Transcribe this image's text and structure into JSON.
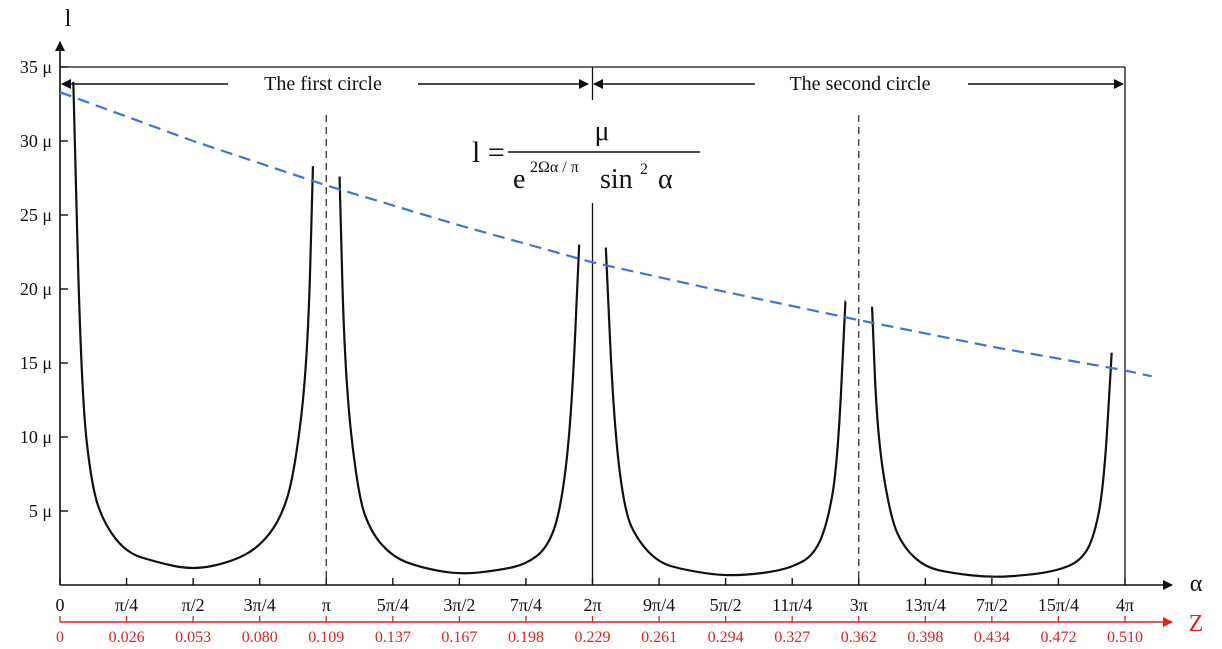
{
  "chart_data": {
    "type": "line",
    "y_axis_label": "l",
    "x_axis_label": "α",
    "z_axis_label": "Z",
    "y_ticks": [
      "5 μ",
      "10 μ",
      "15 μ",
      "20 μ",
      "25 μ",
      "30 μ",
      "35 μ"
    ],
    "y_tick_values": [
      5,
      10,
      15,
      20,
      25,
      30,
      35
    ],
    "ylim": [
      0,
      35
    ],
    "xlim_pi_units": [
      0,
      4
    ],
    "x_ticks": [
      "0",
      "π/4",
      "π/2",
      "3π/4",
      "π",
      "5π/4",
      "3π/2",
      "7π/4",
      "2π",
      "9π/4",
      "5π/2",
      "11π/4",
      "3π",
      "13π/4",
      "7π/2",
      "15π/4",
      "4π"
    ],
    "z_ticks": [
      "0",
      "0.026",
      "0.053",
      "0.080",
      "0.109",
      "0.137",
      "0.167",
      "0.198",
      "0.229",
      "0.261",
      "0.294",
      "0.327",
      "0.362",
      "0.398",
      "0.434",
      "0.472",
      "0.510"
    ],
    "annotations": {
      "first_circle": "The first circle",
      "second_circle": "The second circle"
    },
    "formula": {
      "lhs": "l =",
      "numerator": "μ",
      "den_base": "e",
      "den_exp": "2Ωα / π",
      "den_trig": "sin",
      "den_trig_exp": "2",
      "den_var": "α"
    },
    "series": [
      {
        "style": "solid",
        "color": "#111111",
        "segments": [
          {
            "x": [
              0.05,
              0.08,
              0.12,
              0.17,
              0.25,
              0.35,
              0.5,
              0.65,
              0.75,
              0.83,
              0.88,
              0.93,
              0.95
            ],
            "y": [
              34.0,
              13.0,
              6.5,
              4.0,
              2.2,
              1.6,
              1.0,
              1.6,
              2.6,
              4.5,
              7.5,
              15.0,
              28.3
            ]
          },
          {
            "x": [
              1.05,
              1.07,
              1.12,
              1.17,
              1.25,
              1.35,
              1.5,
              1.65,
              1.75,
              1.83,
              1.88,
              1.92,
              1.95
            ],
            "y": [
              27.6,
              14.0,
              6.0,
              3.5,
              1.9,
              1.2,
              0.7,
              1.0,
              1.4,
              2.5,
              5.0,
              11.0,
              23.0
            ]
          },
          {
            "x": [
              2.05,
              2.08,
              2.12,
              2.17,
              2.25,
              2.35,
              2.5,
              2.65,
              2.75,
              2.83,
              2.88,
              2.92,
              2.95
            ],
            "y": [
              22.8,
              11.0,
              5.0,
              3.0,
              1.5,
              1.0,
              0.6,
              0.8,
              1.2,
              2.0,
              4.0,
              8.0,
              19.2
            ]
          },
          {
            "x": [
              3.05,
              3.07,
              3.12,
              3.17,
              3.25,
              3.35,
              3.5,
              3.65,
              3.75,
              3.83,
              3.88,
              3.92,
              3.95
            ],
            "y": [
              18.8,
              10.0,
              4.5,
              2.5,
              1.2,
              0.8,
              0.5,
              0.7,
              1.0,
              1.6,
              3.0,
              6.5,
              15.7
            ]
          }
        ]
      },
      {
        "style": "dashed",
        "color": "#3f73d8",
        "x": [
          0.0,
          0.5,
          1.0,
          1.5,
          2.0,
          2.5,
          3.0,
          3.5,
          4.0,
          4.1
        ],
        "y": [
          33.3,
          30.0,
          27.0,
          24.3,
          21.8,
          19.8,
          17.9,
          16.1,
          14.5,
          14.1
        ]
      }
    ],
    "guide_lines": {
      "dashed_vertical_at_pi_units": [
        1,
        3
      ],
      "solid_vertical_at_pi_units": [
        2,
        4
      ]
    },
    "colors": {
      "curve": "#111111",
      "envelope": "#3f73d8",
      "z_axis": "#e32222"
    },
    "grid": false
  }
}
